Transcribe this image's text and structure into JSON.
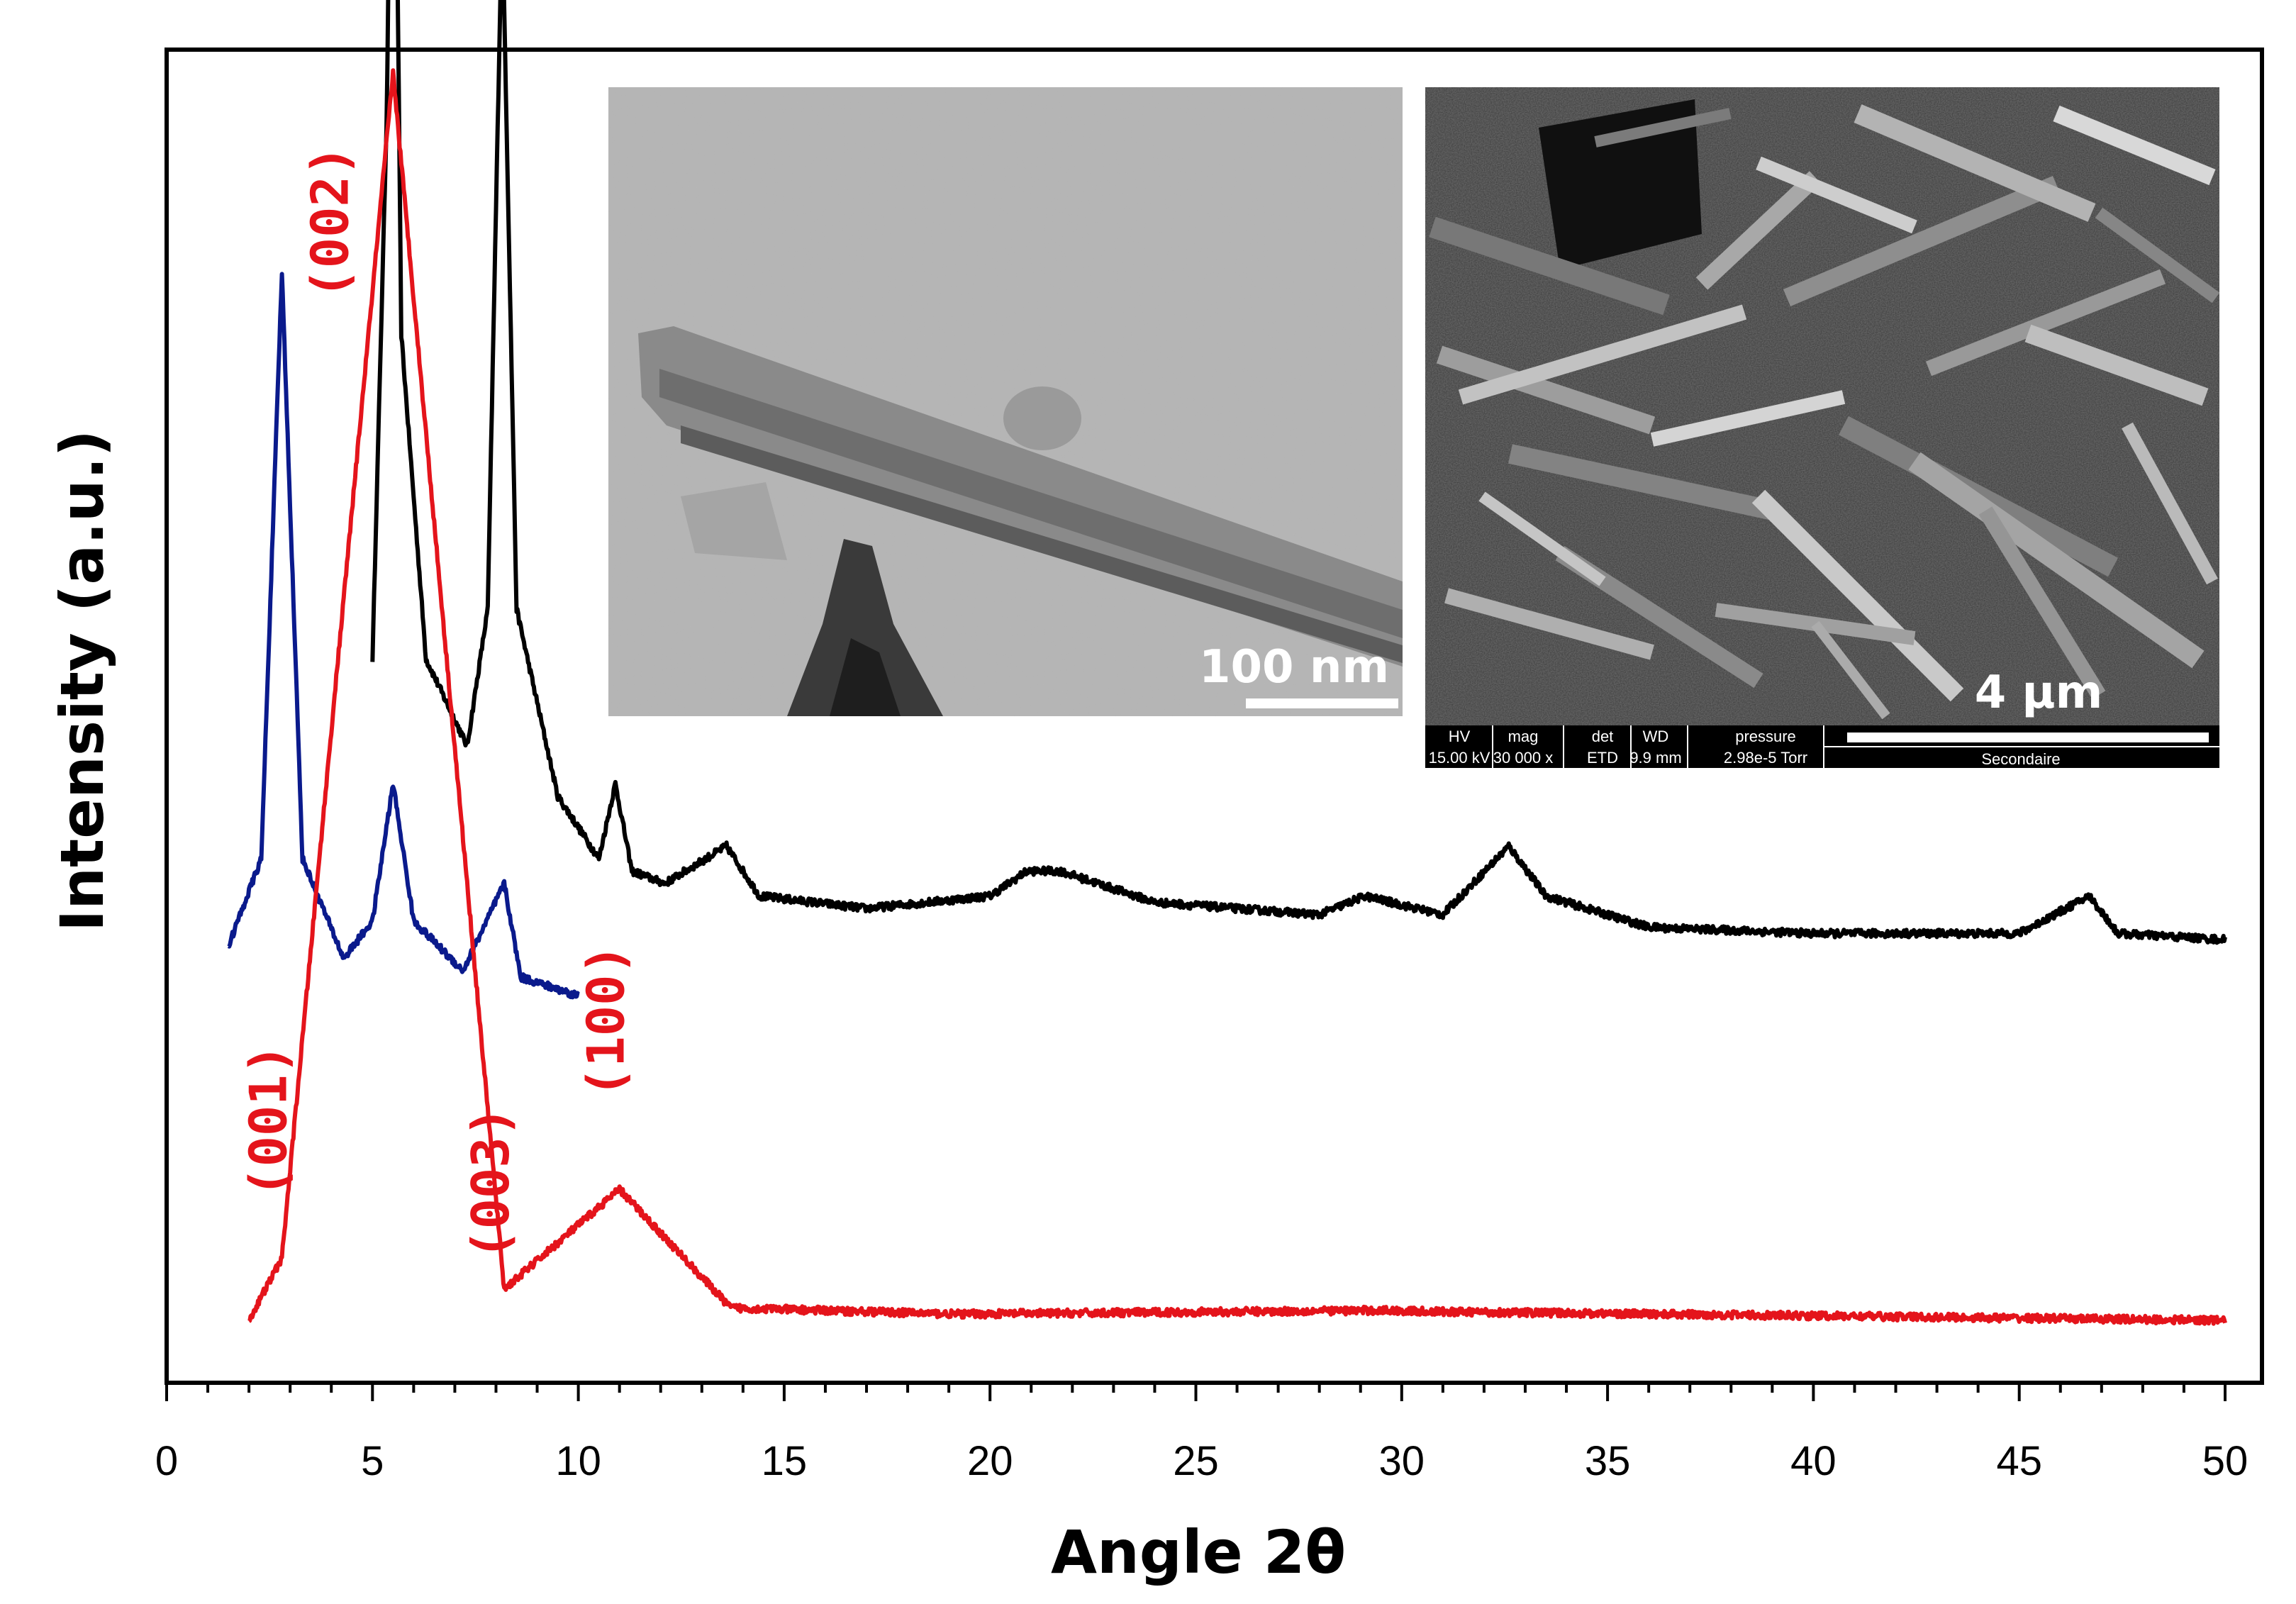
{
  "chart_data": {
    "type": "line",
    "title": "",
    "xlabel": "Angle 2θ",
    "ylabel": "Intensity (a.u.)",
    "xlim": [
      0,
      51
    ],
    "xticks": [
      0,
      5,
      10,
      15,
      20,
      25,
      30,
      35,
      40,
      45,
      50
    ],
    "y_axis_numbers_shown": false,
    "grid": false,
    "legend": "none",
    "colors": {
      "black": "#000000",
      "blue": "#0a1a8c",
      "red": "#e4141b"
    },
    "series": [
      {
        "color": "black",
        "x_range": [
          5.0,
          50.0
        ],
        "points": [
          [
            5.0,
            0.58
          ],
          [
            5.35,
            1.02
          ],
          [
            5.5,
            1.47
          ],
          [
            5.7,
            0.84
          ],
          [
            6.3,
            0.58
          ],
          [
            7.3,
            0.51
          ],
          [
            7.8,
            0.62
          ],
          [
            8.15,
            1.18
          ],
          [
            8.5,
            0.62
          ],
          [
            9.5,
            0.47
          ],
          [
            10.5,
            0.42
          ],
          [
            10.9,
            0.48
          ],
          [
            11.3,
            0.41
          ],
          [
            12.1,
            0.4
          ],
          [
            13.6,
            0.43
          ],
          [
            14.4,
            0.39
          ],
          [
            17.0,
            0.38
          ],
          [
            20.0,
            0.39
          ],
          [
            20.9,
            0.41
          ],
          [
            21.7,
            0.41
          ],
          [
            24.0,
            0.385
          ],
          [
            28.0,
            0.375
          ],
          [
            29.1,
            0.39
          ],
          [
            31.0,
            0.375
          ],
          [
            32.6,
            0.43
          ],
          [
            33.5,
            0.39
          ],
          [
            36.0,
            0.365
          ],
          [
            40.0,
            0.36
          ],
          [
            45.0,
            0.36
          ],
          [
            46.7,
            0.39
          ],
          [
            47.4,
            0.36
          ],
          [
            50.0,
            0.355
          ]
        ]
      },
      {
        "color": "blue",
        "x_range": [
          1.5,
          10.0
        ],
        "points": [
          [
            1.5,
            0.35
          ],
          [
            2.3,
            0.42
          ],
          [
            2.8,
            0.89
          ],
          [
            3.3,
            0.42
          ],
          [
            4.3,
            0.34
          ],
          [
            5.0,
            0.37
          ],
          [
            5.5,
            0.48
          ],
          [
            6.0,
            0.37
          ],
          [
            7.2,
            0.33
          ],
          [
            8.2,
            0.4
          ],
          [
            8.6,
            0.325
          ],
          [
            10.0,
            0.31
          ]
        ]
      },
      {
        "color": "red",
        "x_range": [
          2.0,
          50.0
        ],
        "points": [
          [
            2.0,
            0.05
          ],
          [
            2.8,
            0.1
          ],
          [
            5.5,
            1.05
          ],
          [
            8.2,
            0.075
          ],
          [
            11.0,
            0.155
          ],
          [
            13.7,
            0.06
          ],
          [
            19.2,
            0.055
          ],
          [
            29.5,
            0.058
          ],
          [
            30.8,
            0.057
          ],
          [
            50.0,
            0.05
          ]
        ]
      }
    ],
    "annotations": [
      {
        "text": "(002)",
        "x": 4.4,
        "y": 0.93,
        "color": "red",
        "rotation": -90
      },
      {
        "text": "(001)",
        "x": 2.9,
        "y": 0.21,
        "color": "red",
        "rotation": -90
      },
      {
        "text": "(003)",
        "x": 8.3,
        "y": 0.16,
        "color": "red",
        "rotation": -90
      },
      {
        "text": "(100)",
        "x": 11.1,
        "y": 0.29,
        "color": "red",
        "rotation": -90
      }
    ]
  },
  "insets": {
    "tem": {
      "scale_bar": "100 nm"
    },
    "sem": {
      "scale_bar": "4 µm",
      "info_headers": [
        "HV",
        "mag",
        "det",
        "WD",
        "pressure"
      ],
      "info_values": [
        "15.00 kV",
        "30 000 x",
        "ETD",
        "9.9 mm",
        "2.98e-5 Torr"
      ],
      "mode": "Secondaire"
    }
  }
}
